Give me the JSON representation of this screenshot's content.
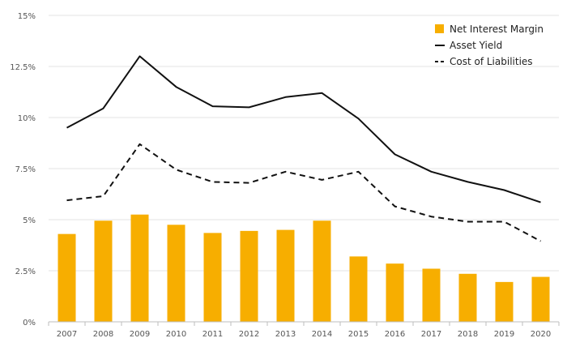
{
  "chart_data": {
    "type": "bar+line",
    "categories": [
      "2007",
      "2008",
      "2009",
      "2010",
      "2011",
      "2012",
      "2013",
      "2014",
      "2015",
      "2016",
      "2017",
      "2018",
      "2019",
      "2020"
    ],
    "y_ticks": [
      {
        "value": 0,
        "label": "0%"
      },
      {
        "value": 2.5,
        "label": "2.5%"
      },
      {
        "value": 5,
        "label": "5%"
      },
      {
        "value": 7.5,
        "label": "7.5%"
      },
      {
        "value": 10,
        "label": "10%"
      },
      {
        "value": 12.5,
        "label": "12.5%"
      },
      {
        "value": 15,
        "label": "15%"
      }
    ],
    "ylim": [
      0,
      15
    ],
    "grid": true,
    "legend_position": "top-right",
    "series": [
      {
        "name": "Net Interest Margin",
        "kind": "bar",
        "color": "#F7AE00",
        "values": [
          4.3,
          4.95,
          5.25,
          4.75,
          4.35,
          4.45,
          4.5,
          4.95,
          3.2,
          2.85,
          2.6,
          2.35,
          1.95,
          2.2
        ]
      },
      {
        "name": "Asset Yield",
        "kind": "line",
        "style": "solid",
        "color": "#111111",
        "values": [
          9.5,
          10.45,
          13.0,
          11.5,
          10.55,
          10.5,
          11.0,
          11.2,
          9.95,
          8.2,
          7.35,
          6.85,
          6.45,
          5.85
        ]
      },
      {
        "name": "Cost of Liabilities",
        "kind": "line",
        "style": "dashed",
        "color": "#111111",
        "values": [
          5.95,
          6.15,
          8.7,
          7.45,
          6.85,
          6.8,
          7.35,
          6.95,
          7.35,
          5.65,
          5.15,
          4.9,
          4.9,
          3.95
        ]
      }
    ]
  }
}
